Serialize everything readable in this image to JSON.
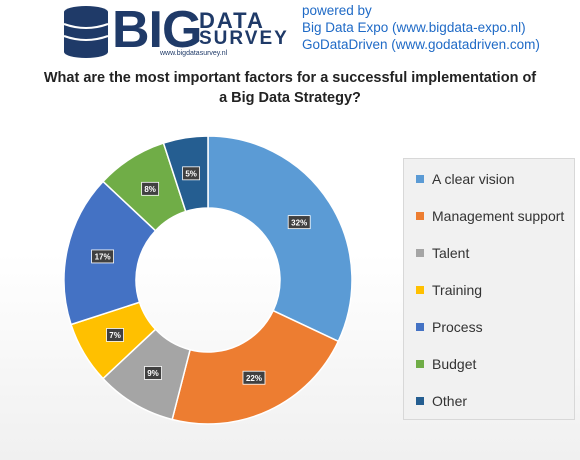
{
  "header": {
    "logo_big": "BIG",
    "logo_data": "DATA",
    "logo_survey": "SURVEY",
    "logo_url": "www.bigdatasurvey.nl",
    "powered_by": "powered by",
    "line1": "Big Data Expo (www.bigdata-expo.nl)",
    "line2": "GoDataDriven (www.godatadriven.com)"
  },
  "chart_data": {
    "type": "pie",
    "donut": true,
    "title_line1": "What are the most important factors for a successful implementation of",
    "title_line2": "a Big Data Strategy?",
    "slices": [
      {
        "label": "A clear vision",
        "value": 32,
        "display": "32%",
        "color": "#5b9bd5"
      },
      {
        "label": "Management support",
        "value": 22,
        "display": "22%",
        "color": "#ed7d31"
      },
      {
        "label": "Talent",
        "value": 9,
        "display": "9%",
        "color": "#a5a5a5"
      },
      {
        "label": "Training",
        "value": 7,
        "display": "7%",
        "color": "#ffc000"
      },
      {
        "label": "Process",
        "value": 17,
        "display": "17%",
        "color": "#4472c4"
      },
      {
        "label": "Budget",
        "value": 8,
        "display": "8%",
        "color": "#70ad47"
      },
      {
        "label": "Other",
        "value": 5,
        "display": "5%",
        "color": "#255e91"
      }
    ],
    "legend_position": "right"
  }
}
